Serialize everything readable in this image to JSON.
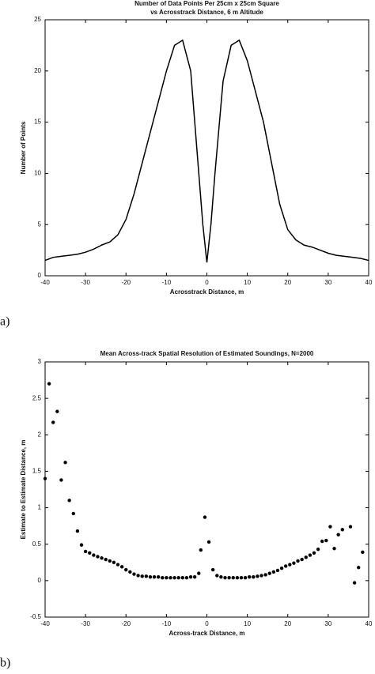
{
  "chart_data": [
    {
      "type": "line",
      "title": "Number of Data Points Per 25cm x 25cm Square",
      "subtitle": "vs Acrosstrack Distance, 6 m Altitude",
      "x_label": "Acrosstrack Distance, m",
      "y_label": "Number of Points",
      "panel_label": "a)",
      "x": [
        -40,
        -38,
        -36,
        -34,
        -32,
        -30,
        -28,
        -26,
        -24,
        -22,
        -20,
        -18,
        -16,
        -14,
        -12,
        -10,
        -8,
        -6,
        -4,
        -2,
        -1,
        0,
        1,
        2,
        4,
        6,
        8,
        10,
        12,
        14,
        16,
        18,
        20,
        22,
        24,
        26,
        28,
        30,
        32,
        34,
        36,
        38,
        40
      ],
      "series": [
        {
          "name": "points",
          "color": "#000000",
          "values": [
            1.5,
            1.8,
            1.9,
            2.0,
            2.1,
            2.3,
            2.6,
            3.0,
            3.3,
            4.0,
            5.5,
            8,
            11,
            14,
            17,
            20,
            22.5,
            23,
            20,
            10,
            5,
            1.3,
            5,
            10,
            19,
            22.5,
            23,
            21,
            18,
            15,
            11,
            7,
            4.5,
            3.5,
            3,
            2.8,
            2.5,
            2.2,
            2.0,
            1.9,
            1.8,
            1.7,
            1.5
          ]
        }
      ],
      "xlim": [
        -40,
        40
      ],
      "xticks": [
        -40,
        -30,
        -20,
        -10,
        0,
        10,
        20,
        30,
        40
      ],
      "ylim": [
        0,
        25
      ],
      "yticks": [
        0,
        5,
        10,
        15,
        20,
        25
      ]
    },
    {
      "type": "scatter",
      "title": "Mean Across-track Spatial Resolution of Estimated Soundings, N=2000",
      "x_label": "Across-track Distance, m",
      "y_label": "Estimate to Estimate Distance, m",
      "panel_label": "b)",
      "x": [
        -40,
        -39,
        -38,
        -37,
        -36,
        -35,
        -34,
        -33,
        -32,
        -31,
        -30,
        -29,
        -28,
        -27,
        -26,
        -25,
        -24,
        -23,
        -22,
        -21,
        -20,
        -19,
        -18,
        -17,
        -16,
        -15,
        -14,
        -13,
        -12,
        -11,
        -10,
        -9,
        -8,
        -7,
        -6,
        -5,
        -4,
        -3,
        -2,
        -1.5,
        -0.5,
        0.5,
        1.5,
        2.5,
        3.5,
        4.5,
        5.5,
        6.5,
        7.5,
        8.5,
        9.5,
        10.5,
        11.5,
        12.5,
        13.5,
        14.5,
        15.5,
        16.5,
        17.5,
        18.5,
        19.5,
        20.5,
        21.5,
        22.5,
        23.5,
        24.5,
        25.5,
        26.5,
        27.5,
        28.5,
        29.5,
        30.5,
        31.5,
        32.5,
        33.5,
        35.5,
        36.5,
        37.5,
        38.5
      ],
      "series": [
        {
          "name": "resolution",
          "color": "#000000",
          "values": [
            1.4,
            2.7,
            2.17,
            2.32,
            1.38,
            1.62,
            1.1,
            0.92,
            0.68,
            0.49,
            0.4,
            0.38,
            0.35,
            0.33,
            0.31,
            0.29,
            0.27,
            0.25,
            0.22,
            0.19,
            0.15,
            0.12,
            0.09,
            0.07,
            0.06,
            0.06,
            0.05,
            0.05,
            0.05,
            0.04,
            0.04,
            0.04,
            0.04,
            0.04,
            0.04,
            0.04,
            0.05,
            0.05,
            0.1,
            0.42,
            0.87,
            0.53,
            0.15,
            0.07,
            0.05,
            0.04,
            0.04,
            0.04,
            0.04,
            0.04,
            0.04,
            0.05,
            0.05,
            0.06,
            0.07,
            0.08,
            0.1,
            0.12,
            0.14,
            0.17,
            0.2,
            0.22,
            0.24,
            0.27,
            0.29,
            0.32,
            0.35,
            0.38,
            0.43,
            0.54,
            0.55,
            0.74,
            0.44,
            0.63,
            0.7,
            0.74,
            -0.03,
            0.18,
            0.39
          ]
        }
      ],
      "xlim": [
        -40,
        40
      ],
      "xticks": [
        -40,
        -30,
        -20,
        -10,
        0,
        10,
        20,
        30,
        40
      ],
      "ylim": [
        -0.5,
        3
      ],
      "yticks": [
        -0.5,
        0,
        0.5,
        1,
        1.5,
        2,
        2.5,
        3
      ]
    }
  ]
}
